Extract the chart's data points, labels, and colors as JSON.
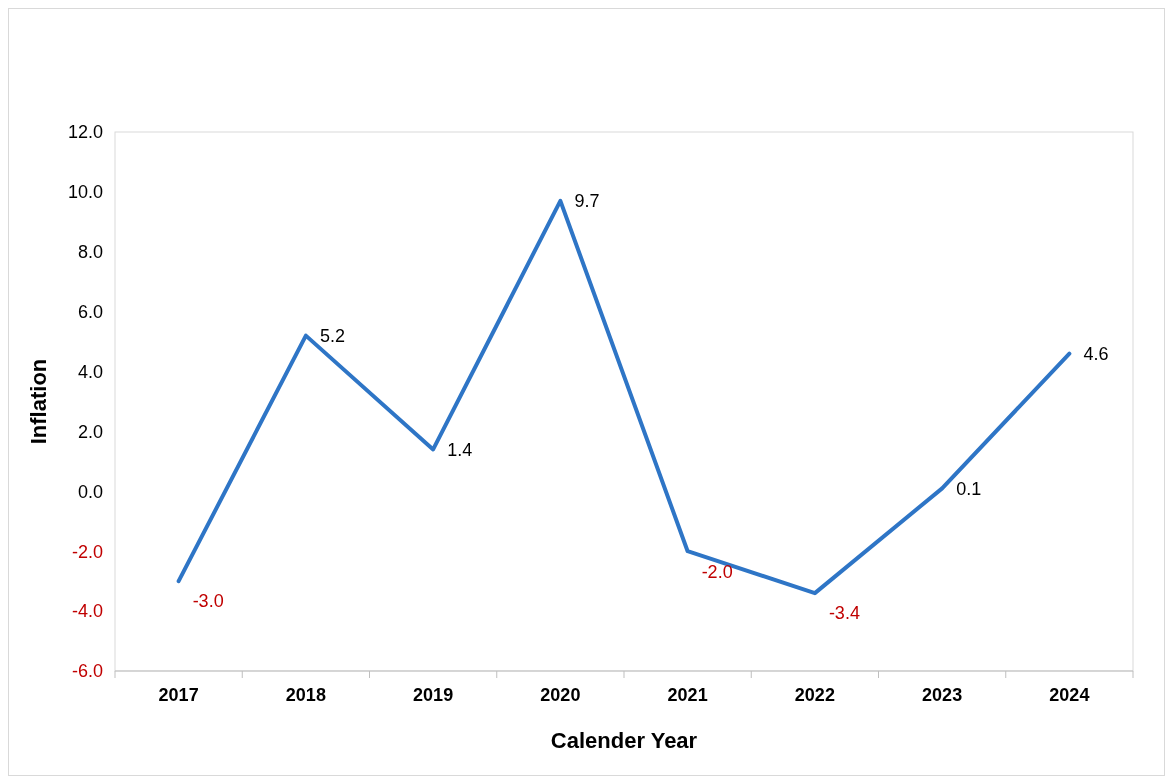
{
  "chart_data": {
    "type": "line",
    "xlabel": "Calender Year",
    "ylabel": "Inflation",
    "categories": [
      "2017",
      "2018",
      "2019",
      "2020",
      "2021",
      "2022",
      "2023",
      "2024"
    ],
    "series": [
      {
        "color": "#2e75c6",
        "values": [
          -3.0,
          5.2,
          1.4,
          9.7,
          -2.0,
          -3.4,
          0.1,
          4.6
        ],
        "value_labels": [
          "-3.0",
          "5.2",
          "1.4",
          "9.7",
          "-2.0",
          "-3.4",
          "0.1",
          "4.6"
        ]
      }
    ],
    "ylim": [
      -6,
      12
    ],
    "yticks": [
      {
        "value": -6,
        "label": "-6.0"
      },
      {
        "value": -4,
        "label": "-4.0"
      },
      {
        "value": -2,
        "label": "-2.0"
      },
      {
        "value": 0,
        "label": "0.0"
      },
      {
        "value": 2,
        "label": "2.0"
      },
      {
        "value": 4,
        "label": "4.0"
      },
      {
        "value": 6,
        "label": "6.0"
      },
      {
        "value": 8,
        "label": "8.0"
      },
      {
        "value": 10,
        "label": "10.0"
      },
      {
        "value": 12,
        "label": "12.0"
      }
    ],
    "grid": false,
    "marker": "none",
    "line_style": "solid"
  }
}
